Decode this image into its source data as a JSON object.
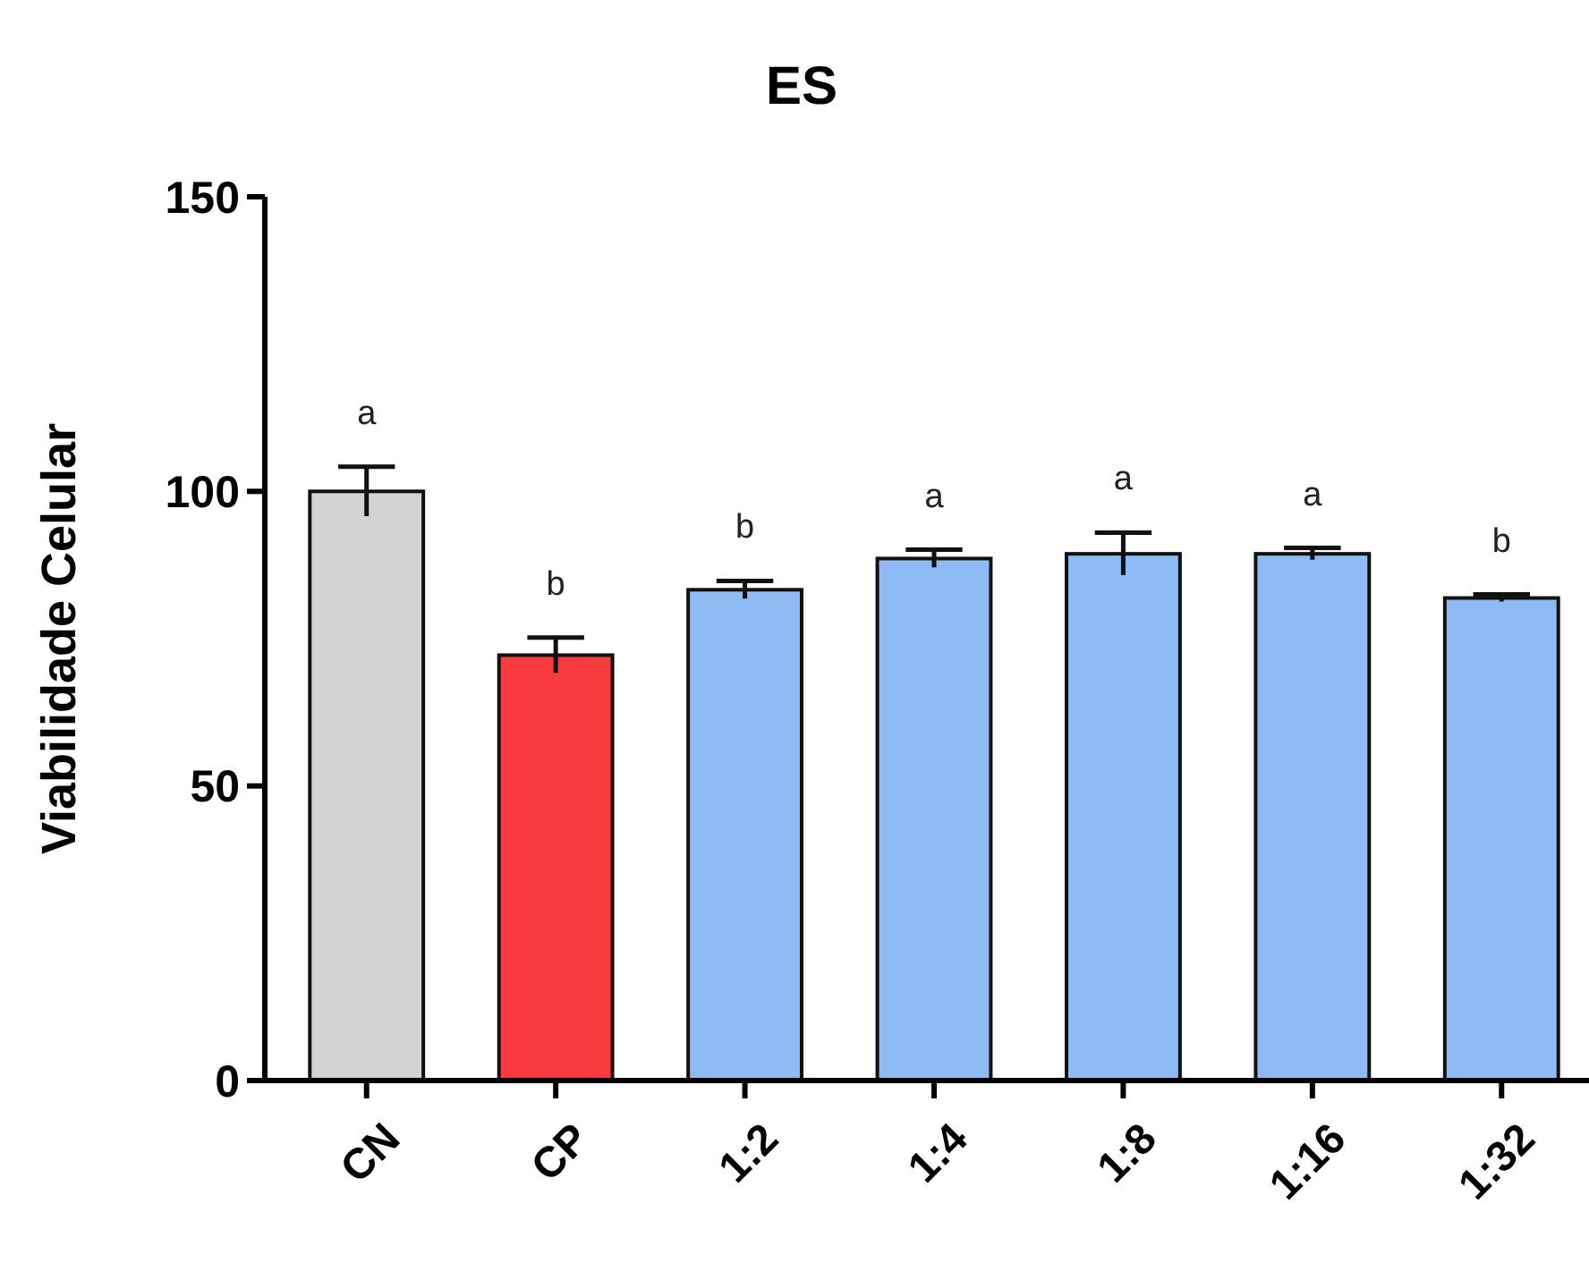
{
  "chart_data": {
    "type": "bar",
    "title": "ES",
    "ylabel": "Viabilidade Celular",
    "categories": [
      "CN",
      "CP",
      "1:2",
      "1:4",
      "1:8",
      "1:16",
      "1:32"
    ],
    "values": [
      100,
      72.2,
      83.3,
      88.6,
      89.4,
      89.4,
      81.9
    ],
    "colors": [
      "#d3d3d3",
      "#f73b3e",
      "#8fbbf5",
      "#8fbbf5",
      "#8fbbf5",
      "#8fbbf5",
      "#8fbbf5"
    ],
    "errors": [
      4.2,
      3,
      1.5,
      1.5,
      3.6,
      1,
      0.6
    ],
    "ylim": [
      0,
      150
    ],
    "yticks": [
      0,
      50,
      100,
      150
    ],
    "grid": false,
    "annotations": [
      {
        "text": "a",
        "x": "CN",
        "y": 100
      },
      {
        "text": "b",
        "x": "CP",
        "y": 72.2
      },
      {
        "text": "b",
        "x": "1:2",
        "y": 83.3
      },
      {
        "text": "a",
        "x": "1:4",
        "y": 88.6
      },
      {
        "text": "a",
        "x": "1:8",
        "y": 89.4
      },
      {
        "text": "a",
        "x": "1:16",
        "y": 89.4
      },
      {
        "text": "b",
        "x": "1:32",
        "y": 81.9
      }
    ]
  }
}
